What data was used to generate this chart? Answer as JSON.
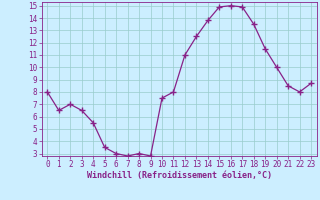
{
  "x": [
    0,
    1,
    2,
    3,
    4,
    5,
    6,
    7,
    8,
    9,
    10,
    11,
    12,
    13,
    14,
    15,
    16,
    17,
    18,
    19,
    20,
    21,
    22,
    23
  ],
  "y": [
    8.0,
    6.5,
    7.0,
    6.5,
    5.5,
    3.5,
    3.0,
    2.8,
    3.0,
    2.8,
    7.5,
    8.0,
    11.0,
    12.5,
    13.8,
    14.9,
    15.0,
    14.9,
    13.5,
    11.5,
    10.0,
    8.5,
    8.0,
    8.7
  ],
  "ylim": [
    3,
    15
  ],
  "yticks": [
    3,
    4,
    5,
    6,
    7,
    8,
    9,
    10,
    11,
    12,
    13,
    14,
    15
  ],
  "xticks": [
    0,
    1,
    2,
    3,
    4,
    5,
    6,
    7,
    8,
    9,
    10,
    11,
    12,
    13,
    14,
    15,
    16,
    17,
    18,
    19,
    20,
    21,
    22,
    23
  ],
  "xlabel": "Windchill (Refroidissement éolien,°C)",
  "line_color": "#882288",
  "marker_color": "#882288",
  "bg_color": "#cceeff",
  "grid_color": "#99cccc",
  "tick_color": "#882288",
  "xlabel_color": "#882288"
}
